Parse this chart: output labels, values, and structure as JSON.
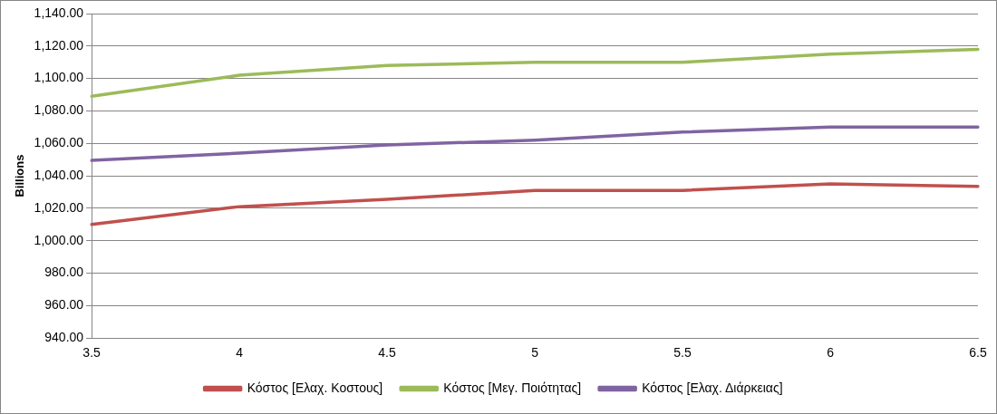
{
  "chart_data": {
    "type": "line",
    "ylabel": "Billions",
    "categories": [
      "3.5",
      "4",
      "4.5",
      "5",
      "5.5",
      "6",
      "6.5"
    ],
    "series": [
      {
        "name": "Κόστος [Ελαχ. Κοστους]",
        "color": "#c0504d",
        "values": [
          1010,
          1021,
          1025.5,
          1031,
          1031,
          1035,
          1033.5
        ]
      },
      {
        "name": "Κόστος [Μεγ. Ποιότητας]",
        "color": "#9bbb59",
        "values": [
          1089,
          1102,
          1108,
          1110,
          1110,
          1115,
          1118
        ]
      },
      {
        "name": "Κόστος [Ελαχ. Διάρκειας]",
        "color": "#8064a2",
        "values": [
          1049.5,
          1054,
          1059,
          1062,
          1067,
          1070,
          1070
        ]
      }
    ],
    "ylim": [
      940,
      1140
    ],
    "yticks": [
      {
        "value": 940,
        "label": "940.00"
      },
      {
        "value": 960,
        "label": "960.00"
      },
      {
        "value": 980,
        "label": "980.00"
      },
      {
        "value": 1000,
        "label": "1,000.00"
      },
      {
        "value": 1020,
        "label": "1,020.00"
      },
      {
        "value": 1040,
        "label": "1,040.00"
      },
      {
        "value": 1060,
        "label": "1,060.00"
      },
      {
        "value": 1080,
        "label": "1,080.00"
      },
      {
        "value": 1100,
        "label": "1,100.00"
      },
      {
        "value": 1120,
        "label": "1,120.00"
      },
      {
        "value": 1140,
        "label": "1,140.00"
      }
    ],
    "grid": "y",
    "legend": "bottom",
    "marker": "none",
    "line_style": "solid"
  }
}
